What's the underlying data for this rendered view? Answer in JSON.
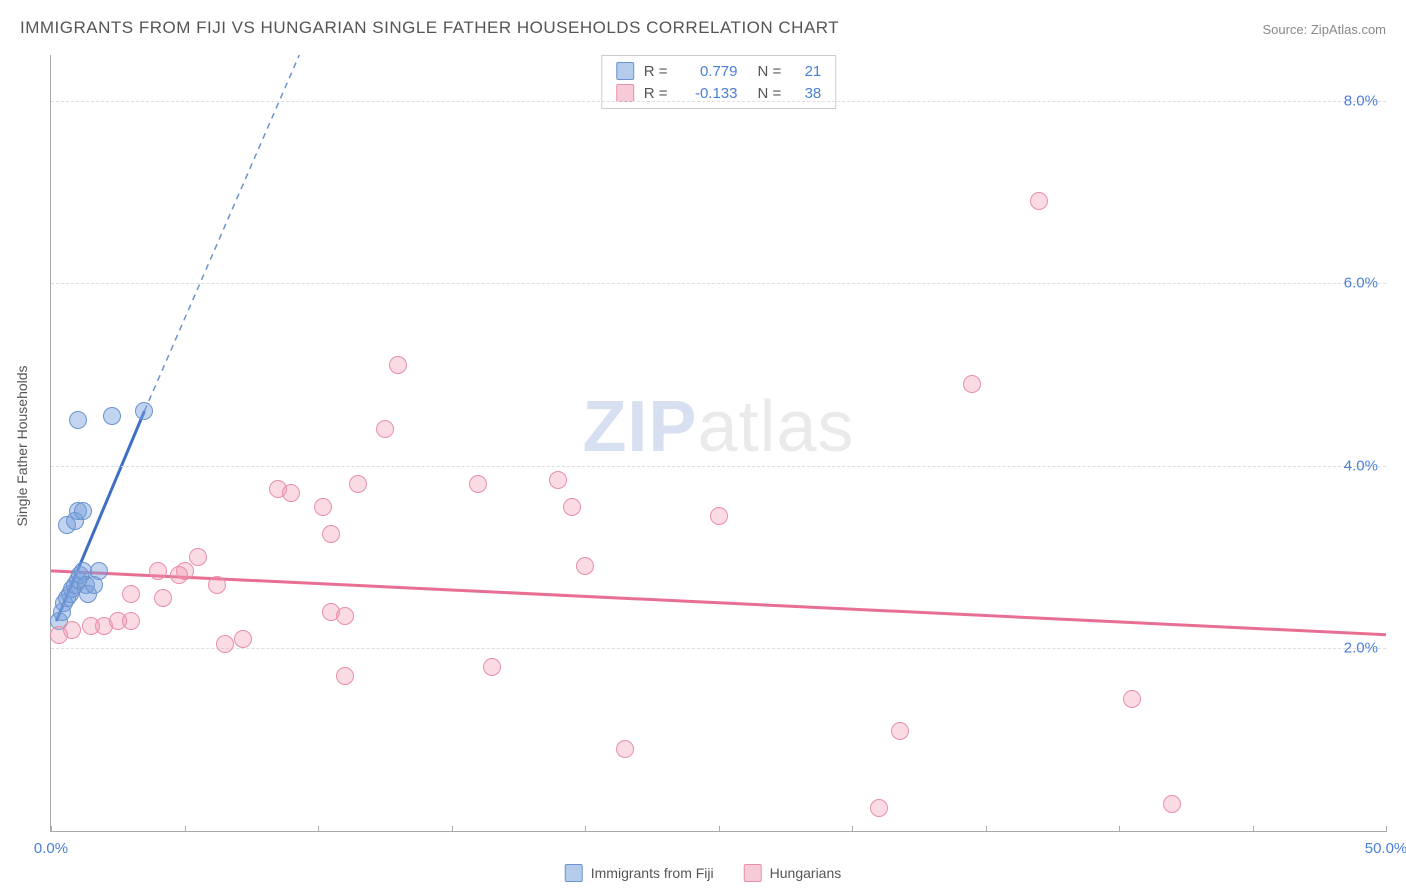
{
  "title": "IMMIGRANTS FROM FIJI VS HUNGARIAN SINGLE FATHER HOUSEHOLDS CORRELATION CHART",
  "source_label": "Source: ZipAtlas.com",
  "y_axis_title": "Single Father Households",
  "watermark": {
    "bold": "ZIP",
    "light": "atlas"
  },
  "chart": {
    "type": "scatter",
    "background_color": "#ffffff",
    "grid_color": "#dddddd",
    "axis_color": "#aaaaaa",
    "xlim": [
      0,
      50
    ],
    "ylim": [
      0,
      8.5
    ],
    "x_ticks": [
      0,
      5,
      10,
      15,
      20,
      25,
      30,
      35,
      40,
      45,
      50
    ],
    "x_tick_labels": {
      "0": "0.0%",
      "50": "50.0%"
    },
    "y_ticks": [
      2,
      4,
      6,
      8
    ],
    "y_tick_labels": {
      "2": "2.0%",
      "4": "4.0%",
      "6": "6.0%",
      "8": "8.0%"
    },
    "point_radius": 9,
    "tick_label_color": "#4a7fd6",
    "tick_label_fontsize": 15
  },
  "series": [
    {
      "key": "fiji",
      "label": "Immigrants from Fiji",
      "color_fill": "rgba(120,160,220,0.45)",
      "color_stroke": "#6a93d0",
      "css_class": "series-blue",
      "swatch_class": "sw-blue",
      "R": "0.779",
      "N": "21",
      "trend": {
        "x1": 0.2,
        "y1": 2.3,
        "x2": 3.5,
        "y2": 4.6,
        "stroke": "#3f6fc5",
        "width": 3,
        "dash": ""
      },
      "trend_ext": {
        "x1": 3.5,
        "y1": 4.6,
        "x2": 9.3,
        "y2": 8.5,
        "stroke": "#6a93d0",
        "width": 1.5,
        "dash": "6 5"
      },
      "points": [
        [
          0.3,
          2.3
        ],
        [
          0.4,
          2.4
        ],
        [
          0.5,
          2.5
        ],
        [
          0.6,
          2.55
        ],
        [
          0.7,
          2.6
        ],
        [
          0.8,
          2.65
        ],
        [
          0.9,
          2.7
        ],
        [
          1.0,
          2.75
        ],
        [
          1.1,
          2.8
        ],
        [
          1.2,
          2.85
        ],
        [
          1.3,
          2.7
        ],
        [
          1.4,
          2.6
        ],
        [
          1.6,
          2.7
        ],
        [
          1.8,
          2.85
        ],
        [
          0.6,
          3.35
        ],
        [
          0.9,
          3.4
        ],
        [
          1.0,
          3.5
        ],
        [
          1.2,
          3.5
        ],
        [
          1.0,
          4.5
        ],
        [
          2.3,
          4.55
        ],
        [
          3.5,
          4.6
        ]
      ]
    },
    {
      "key": "hungarians",
      "label": "Hungarians",
      "color_fill": "rgba(240,150,175,0.35)",
      "color_stroke": "#e88fa8",
      "css_class": "series-pink",
      "swatch_class": "sw-pink",
      "R": "-0.133",
      "N": "38",
      "trend": {
        "x1": 0,
        "y1": 2.85,
        "x2": 50,
        "y2": 2.15,
        "stroke": "#e86e93",
        "width": 3,
        "dash": ""
      },
      "points": [
        [
          0.3,
          2.15
        ],
        [
          0.8,
          2.2
        ],
        [
          1.5,
          2.25
        ],
        [
          2.0,
          2.25
        ],
        [
          2.5,
          2.3
        ],
        [
          3.0,
          2.3
        ],
        [
          3.0,
          2.6
        ],
        [
          4.2,
          2.55
        ],
        [
          4.0,
          2.85
        ],
        [
          5.0,
          2.85
        ],
        [
          6.2,
          2.7
        ],
        [
          6.5,
          2.05
        ],
        [
          7.2,
          2.1
        ],
        [
          4.8,
          2.8
        ],
        [
          5.5,
          3.0
        ],
        [
          8.5,
          3.75
        ],
        [
          9.0,
          3.7
        ],
        [
          10.2,
          3.55
        ],
        [
          10.5,
          3.25
        ],
        [
          10.5,
          2.4
        ],
        [
          11.0,
          2.35
        ],
        [
          11.0,
          1.7
        ],
        [
          11.5,
          3.8
        ],
        [
          12.5,
          4.4
        ],
        [
          13.0,
          5.1
        ],
        [
          16.0,
          3.8
        ],
        [
          16.5,
          1.8
        ],
        [
          19.0,
          3.85
        ],
        [
          19.5,
          3.55
        ],
        [
          21.5,
          0.9
        ],
        [
          20.0,
          2.9
        ],
        [
          25.0,
          3.45
        ],
        [
          31.0,
          0.25
        ],
        [
          31.8,
          1.1
        ],
        [
          34.5,
          4.9
        ],
        [
          37.0,
          6.9
        ],
        [
          40.5,
          1.45
        ],
        [
          42.0,
          0.3
        ]
      ]
    }
  ],
  "stats_box": {
    "R_label": "R  =",
    "N_label": "N  ="
  },
  "legend": {
    "items": [
      "fiji",
      "hungarians"
    ]
  }
}
